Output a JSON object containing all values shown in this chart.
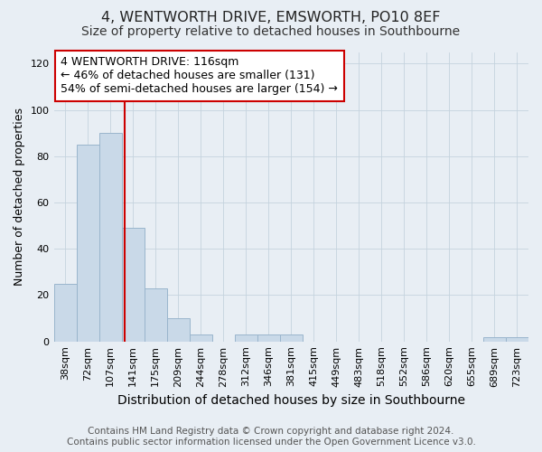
{
  "title": "4, WENTWORTH DRIVE, EMSWORTH, PO10 8EF",
  "subtitle": "Size of property relative to detached houses in Southbourne",
  "xlabel": "Distribution of detached houses by size in Southbourne",
  "ylabel": "Number of detached properties",
  "footer_line1": "Contains HM Land Registry data © Crown copyright and database right 2024.",
  "footer_line2": "Contains public sector information licensed under the Open Government Licence v3.0.",
  "bin_labels": [
    "38sqm",
    "72sqm",
    "107sqm",
    "141sqm",
    "175sqm",
    "209sqm",
    "244sqm",
    "278sqm",
    "312sqm",
    "346sqm",
    "381sqm",
    "415sqm",
    "449sqm",
    "483sqm",
    "518sqm",
    "552sqm",
    "586sqm",
    "620sqm",
    "655sqm",
    "689sqm",
    "723sqm"
  ],
  "bar_values": [
    25,
    85,
    90,
    49,
    23,
    10,
    3,
    0,
    3,
    3,
    3,
    0,
    0,
    0,
    0,
    0,
    0,
    0,
    0,
    2,
    2
  ],
  "bar_color": "#c9d9e8",
  "bar_edge_color": "#9ab5cc",
  "vline_x": 2.62,
  "vline_color": "#cc0000",
  "annotation_text": "4 WENTWORTH DRIVE: 116sqm\n← 46% of detached houses are smaller (131)\n54% of semi-detached houses are larger (154) →",
  "annotation_box_color": "#ffffff",
  "annotation_box_edge_color": "#cc0000",
  "ylim": [
    0,
    125
  ],
  "yticks": [
    0,
    20,
    40,
    60,
    80,
    100,
    120
  ],
  "background_color": "#e8eef4",
  "plot_bg_color": "#e8eef4",
  "grid_color": "#c5d3de",
  "title_fontsize": 11.5,
  "subtitle_fontsize": 10,
  "xlabel_fontsize": 10,
  "ylabel_fontsize": 9,
  "tick_fontsize": 8,
  "annotation_fontsize": 9,
  "footer_fontsize": 7.5
}
